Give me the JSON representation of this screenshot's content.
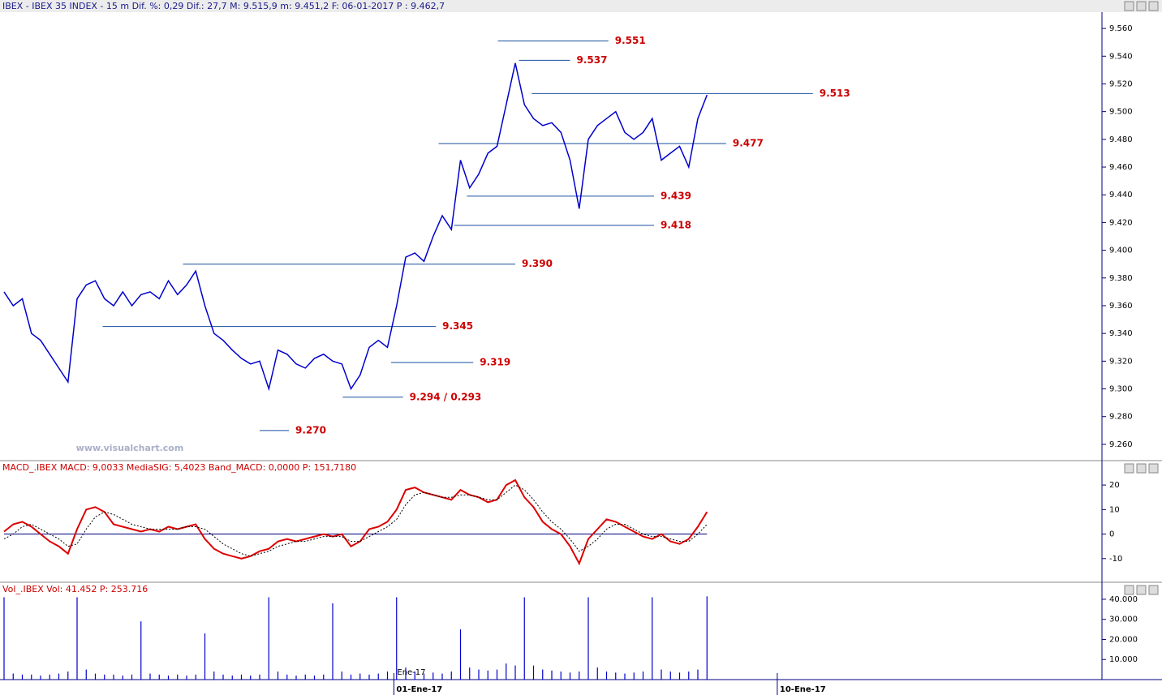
{
  "chart_data": [
    {
      "type": "line",
      "title": "IBEX - IBEX 35 INDEX - 15 m Dif. %: 0,29 Dif.: 27,7 M: 9.515,9 m: 9.451,2 F: 06-01-2017 P : 9.462,7",
      "watermark": "www.visualchart.com",
      "xlim": [
        0,
        120
      ],
      "ylim": [
        9250,
        9570
      ],
      "yticks": [
        {
          "value": 9260,
          "label": "9.260"
        },
        {
          "value": 9280,
          "label": "9.280"
        },
        {
          "value": 9300,
          "label": "9.300"
        },
        {
          "value": 9320,
          "label": "9.320"
        },
        {
          "value": 9340,
          "label": "9.340"
        },
        {
          "value": 9360,
          "label": "9.360"
        },
        {
          "value": 9380,
          "label": "9.380"
        },
        {
          "value": 9400,
          "label": "9.400"
        },
        {
          "value": 9420,
          "label": "9.420"
        },
        {
          "value": 9440,
          "label": "9.440"
        },
        {
          "value": 9460,
          "label": "9.460"
        },
        {
          "value": 9480,
          "label": "9.480"
        },
        {
          "value": 9500,
          "label": "9.500"
        },
        {
          "value": 9520,
          "label": "9.520"
        },
        {
          "value": 9540,
          "label": "9.540"
        },
        {
          "value": 9560,
          "label": "9.560"
        }
      ],
      "x": [
        0,
        1,
        2,
        3,
        4,
        5,
        6,
        7,
        8,
        9,
        10,
        11,
        12,
        13,
        14,
        15,
        16,
        17,
        18,
        19,
        20,
        21,
        22,
        23,
        24,
        25,
        26,
        27,
        28,
        29,
        30,
        31,
        32,
        33,
        34,
        35,
        36,
        37,
        38,
        39,
        40,
        41,
        42,
        43,
        44,
        45,
        46,
        47,
        48,
        49,
        50,
        51,
        52,
        53,
        54,
        55,
        56,
        57,
        58,
        59,
        60,
        61,
        62,
        63,
        64,
        65,
        66,
        67,
        68,
        69,
        70,
        71,
        72,
        73,
        74,
        75,
        76,
        77
      ],
      "series": [
        {
          "color": "#0000cc",
          "values": [
            9370,
            9360,
            9365,
            9340,
            9335,
            9325,
            9315,
            9305,
            9365,
            9375,
            9378,
            9365,
            9360,
            9370,
            9360,
            9368,
            9370,
            9365,
            9378,
            9368,
            9375,
            9385,
            9360,
            9340,
            9335,
            9328,
            9322,
            9318,
            9320,
            9300,
            9328,
            9325,
            9318,
            9315,
            9322,
            9325,
            9320,
            9318,
            9300,
            9310,
            9330,
            9335,
            9330,
            9360,
            9395,
            9398,
            9392,
            9410,
            9425,
            9415,
            9465,
            9445,
            9455,
            9470,
            9475,
            9505,
            9535,
            9505,
            9495,
            9490,
            9492,
            9485,
            9465,
            9430,
            9480,
            9490,
            9495,
            9500,
            9485,
            9480,
            9485,
            9495,
            9465,
            9470,
            9475,
            9460,
            9495,
            9512
          ]
        }
      ],
      "levels": [
        {
          "value": 9551,
          "label": "9.551",
          "x": [
            54.1,
            66.2
          ]
        },
        {
          "value": 9537,
          "label": "9.537",
          "x": [
            56.4,
            62
          ]
        },
        {
          "value": 9513,
          "label": "9.513",
          "x": [
            57.8,
            88.6
          ]
        },
        {
          "value": 9477,
          "label": "9.477",
          "x": [
            47.6,
            79.1
          ]
        },
        {
          "value": 9439,
          "label": "9.439",
          "x": [
            50.7,
            71.2
          ]
        },
        {
          "value": 9418,
          "label": "9.418",
          "x": [
            49.3,
            71.2
          ]
        },
        {
          "value": 9390,
          "label": "9.390",
          "x": [
            19.6,
            56
          ]
        },
        {
          "value": 9345,
          "label": "9.345",
          "x": [
            10.8,
            47.3
          ]
        },
        {
          "value": 9319,
          "label": "9.319",
          "x": [
            42.4,
            51.4
          ]
        },
        {
          "value": 9294,
          "label": "9.294 / 0.293",
          "x": [
            37.1,
            43.7
          ]
        },
        {
          "value": 9270,
          "label": "9.270",
          "x": [
            28,
            31.2
          ]
        }
      ]
    },
    {
      "type": "line",
      "title": "MACD_.IBEX MACD: 9,0033 MediaSIG: 5,4023 Band_MACD: 0,0000 P: 151,7180",
      "xlim": [
        0,
        120
      ],
      "ylim": [
        -19,
        24
      ],
      "yticks": [
        -10,
        0,
        10,
        20
      ],
      "x": [
        0,
        1,
        2,
        3,
        4,
        5,
        6,
        7,
        8,
        9,
        10,
        11,
        12,
        13,
        14,
        15,
        16,
        17,
        18,
        19,
        20,
        21,
        22,
        23,
        24,
        25,
        26,
        27,
        28,
        29,
        30,
        31,
        32,
        33,
        34,
        35,
        36,
        37,
        38,
        39,
        40,
        41,
        42,
        43,
        44,
        45,
        46,
        47,
        48,
        49,
        50,
        51,
        52,
        53,
        54,
        55,
        56,
        57,
        58,
        59,
        60,
        61,
        62,
        63,
        64,
        65,
        66,
        67,
        68,
        69,
        70,
        71,
        72,
        73,
        74,
        75,
        76,
        77
      ],
      "series": [
        {
          "color": "#dd0000",
          "values": [
            1,
            4,
            5,
            3,
            0,
            -3,
            -5,
            -8,
            2,
            10,
            11,
            9,
            4,
            3,
            2,
            1,
            2,
            1,
            3,
            2,
            3,
            4,
            -2,
            -6,
            -8,
            -9,
            -10,
            -9,
            -7,
            -6,
            -3,
            -2,
            -3,
            -2,
            -1,
            0,
            -1,
            0,
            -5,
            -3,
            2,
            3,
            5,
            10,
            18,
            19,
            17,
            16,
            15,
            14,
            18,
            16,
            15,
            13,
            14,
            20,
            22,
            15,
            11,
            5,
            2,
            0,
            -5,
            -12,
            -2,
            2,
            6,
            5,
            3,
            1,
            -1,
            -2,
            0,
            -3,
            -4,
            -2,
            3,
            9
          ]
        },
        {
          "color": "#000000",
          "dashed": true,
          "values": [
            -2,
            0,
            3,
            4,
            2,
            0,
            -2,
            -5,
            -4,
            2,
            7,
            9,
            8,
            6,
            4,
            3,
            2,
            2,
            2,
            2,
            3,
            3,
            2,
            -1,
            -4,
            -6,
            -8,
            -9,
            -8,
            -7,
            -5,
            -4,
            -3,
            -3,
            -2,
            -1,
            -1,
            -1,
            -3,
            -3,
            -1,
            1,
            3,
            6,
            12,
            16,
            17,
            16,
            15,
            15,
            16,
            16,
            15,
            14,
            14,
            17,
            20,
            18,
            14,
            9,
            5,
            2,
            -2,
            -7,
            -5,
            -2,
            2,
            4,
            4,
            2,
            0,
            -1,
            -1,
            -2,
            -3,
            -3,
            0,
            4
          ]
        }
      ]
    },
    {
      "type": "bar",
      "title": "Vol_.IBEX Vol: 41.452 P: 253.716",
      "annotation": "Ene-17",
      "xlim": [
        0,
        120
      ],
      "ylim": [
        0,
        42000
      ],
      "yticks": [
        {
          "value": 10000,
          "label": "10.000"
        },
        {
          "value": 20000,
          "label": "20.000"
        },
        {
          "value": 30000,
          "label": "30.000"
        },
        {
          "value": 40000,
          "label": "40.000"
        }
      ],
      "xticks": [
        {
          "value": 42.7,
          "label": "01-Ene-17"
        },
        {
          "value": 84.7,
          "label": "10-Ene-17"
        }
      ],
      "x": [
        0,
        1,
        2,
        3,
        4,
        5,
        6,
        7,
        8,
        9,
        10,
        11,
        12,
        13,
        14,
        15,
        16,
        17,
        18,
        19,
        20,
        21,
        22,
        23,
        24,
        25,
        26,
        27,
        28,
        29,
        30,
        31,
        32,
        33,
        34,
        35,
        36,
        37,
        38,
        39,
        40,
        41,
        42,
        43,
        44,
        45,
        46,
        47,
        48,
        49,
        50,
        51,
        52,
        53,
        54,
        55,
        56,
        57,
        58,
        59,
        60,
        61,
        62,
        63,
        64,
        65,
        66,
        67,
        68,
        69,
        70,
        71,
        72,
        73,
        74,
        75,
        76,
        77
      ],
      "color": "#0000cc",
      "values": [
        41000,
        3000,
        2500,
        2500,
        2000,
        2500,
        3000,
        4000,
        41000,
        5000,
        3000,
        2500,
        2500,
        2000,
        2500,
        29000,
        3000,
        2500,
        2000,
        2500,
        2000,
        2500,
        23000,
        4000,
        2500,
        2000,
        2500,
        2000,
        2500,
        41000,
        4000,
        2500,
        2000,
        2500,
        2000,
        2500,
        38000,
        4000,
        2500,
        3000,
        2500,
        3000,
        4000,
        41000,
        6000,
        4000,
        3000,
        3500,
        3000,
        4000,
        25000,
        6000,
        5000,
        4500,
        5000,
        8000,
        7000,
        41000,
        7000,
        5000,
        4500,
        4000,
        3500,
        4000,
        41000,
        6000,
        4000,
        3500,
        3000,
        3500,
        4000,
        41000,
        5000,
        4000,
        3500,
        4000,
        5000,
        41452
      ]
    }
  ]
}
